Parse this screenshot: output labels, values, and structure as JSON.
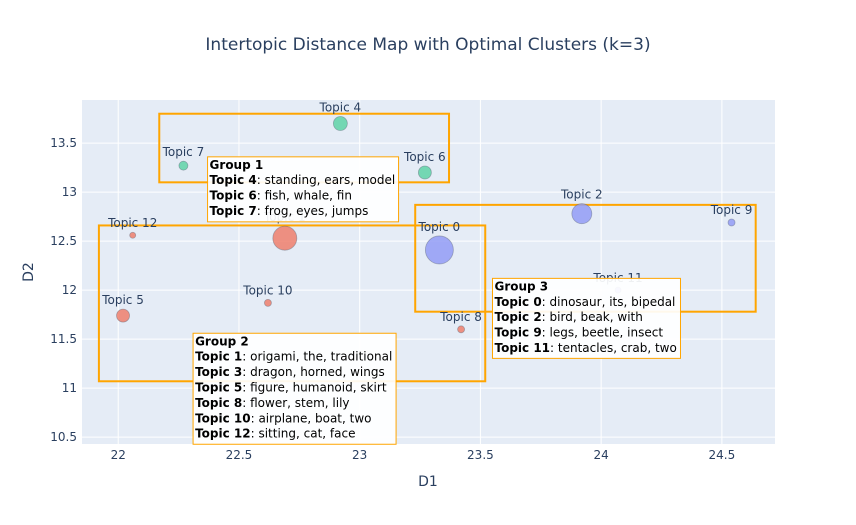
{
  "chart_data": {
    "type": "scatter",
    "title": "Intertopic Distance Map with Optimal Clusters (k=3)",
    "xlabel": "D1",
    "ylabel": "D2",
    "xlim": [
      21.85,
      24.72
    ],
    "ylim": [
      10.43,
      13.94
    ],
    "xticks": [
      22,
      22.5,
      23,
      23.5,
      24,
      24.5
    ],
    "yticks": [
      10.5,
      11,
      11.5,
      12,
      12.5,
      13,
      13.5
    ],
    "ytick_labels": [
      "10.5",
      "11",
      "11.5",
      "12",
      "12.5",
      "13",
      "13.5"
    ],
    "colors": {
      "group1": "#5fd3a7",
      "group2": "#ef7f6c",
      "group3": "#939cf6",
      "box": "#ffa500",
      "plot_bg": "#e5ecf6",
      "grid": "#ffffff"
    },
    "points": [
      {
        "label": "Topic 0",
        "x": 23.33,
        "y": 12.41,
        "size": 14,
        "group": "group3"
      },
      {
        "label": "Topic 1",
        "x": 22.69,
        "y": 12.53,
        "size": 12,
        "group": "group2"
      },
      {
        "label": "Topic 2",
        "x": 23.92,
        "y": 12.78,
        "size": 10,
        "group": "group3"
      },
      {
        "label": "Topic 4",
        "x": 22.92,
        "y": 13.7,
        "size": 7,
        "group": "group1"
      },
      {
        "label": "Topic 5",
        "x": 22.02,
        "y": 11.74,
        "size": 6.5,
        "group": "group2"
      },
      {
        "label": "Topic 6",
        "x": 23.27,
        "y": 13.2,
        "size": 6.5,
        "group": "group1"
      },
      {
        "label": "Topic 7",
        "x": 22.27,
        "y": 13.27,
        "size": 4.5,
        "group": "group1"
      },
      {
        "label": "Topic 8",
        "x": 23.42,
        "y": 11.6,
        "size": 3.5,
        "group": "group2"
      },
      {
        "label": "Topic 9",
        "x": 24.54,
        "y": 12.69,
        "size": 3.5,
        "group": "group3"
      },
      {
        "label": "Topic 10",
        "x": 22.62,
        "y": 11.87,
        "size": 3.5,
        "group": "group2"
      },
      {
        "label": "Topic 11",
        "x": 24.07,
        "y": 12.0,
        "size": 3,
        "group": "group3"
      },
      {
        "label": "Topic 12",
        "x": 22.06,
        "y": 12.56,
        "size": 3,
        "group": "group2"
      }
    ],
    "cluster_boxes": [
      {
        "group": "Group 1",
        "x0": 22.17,
        "x1": 23.37,
        "y0": 13.1,
        "y1": 13.8
      },
      {
        "group": "Group 2",
        "x0": 21.92,
        "x1": 23.52,
        "y0": 11.07,
        "y1": 12.66
      },
      {
        "group": "Group 3",
        "x0": 23.23,
        "x1": 24.64,
        "y0": 11.78,
        "y1": 12.87
      }
    ],
    "annotations": [
      {
        "title": "Group 1",
        "x": 22.37,
        "y": 13.36,
        "lines": [
          {
            "key": "Topic 4",
            "text": ": standing, ears, model"
          },
          {
            "key": "Topic 6",
            "text": ": fish, whale, fin"
          },
          {
            "key": "Topic 7",
            "text": ": frog, eyes, jumps"
          }
        ]
      },
      {
        "title": "Group 2",
        "x": 22.31,
        "y": 11.56,
        "lines": [
          {
            "key": "Topic 1",
            "text": ": origami, the, traditional"
          },
          {
            "key": "Topic 3",
            "text": ": dragon, horned, wings"
          },
          {
            "key": "Topic 5",
            "text": ": figure, humanoid, skirt"
          },
          {
            "key": "Topic 8",
            "text": ": flower, stem, lily"
          },
          {
            "key": "Topic 10",
            "text": ": airplane, boat, two"
          },
          {
            "key": "Topic 12",
            "text": ": sitting, cat, face"
          }
        ]
      },
      {
        "title": "Group 3",
        "x": 23.55,
        "y": 12.12,
        "lines": [
          {
            "key": "Topic 0",
            "text": ": dinosaur, its, bipedal"
          },
          {
            "key": "Topic 2",
            "text": ": bird, beak, with"
          },
          {
            "key": "Topic 9",
            "text": ": legs, beetle, insect"
          },
          {
            "key": "Topic 11",
            "text": ": tentacles, crab, two"
          }
        ]
      }
    ]
  }
}
